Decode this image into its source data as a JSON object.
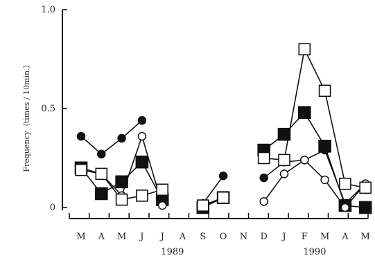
{
  "chart_data": {
    "type": "line",
    "title": "",
    "ylabel": "Frequency（times / 10min.）",
    "xlabel": "",
    "ylim": [
      0,
      1.0
    ],
    "yticks": [
      0,
      0.5,
      1.0
    ],
    "ytick_labels": [
      "0",
      "0.5",
      "1.0"
    ],
    "categories": [
      "M",
      "A",
      "M",
      "J",
      "J",
      "A",
      "S",
      "O",
      "N",
      "D",
      "J",
      "F",
      "M",
      "A",
      "M"
    ],
    "year_labels": [
      {
        "text": "1989",
        "category_index": 4.5
      },
      {
        "text": "1990",
        "category_index": 11.5
      }
    ],
    "series": [
      {
        "marker": "filled-circle",
        "values": [
          0.36,
          0.27,
          0.35,
          0.44,
          null,
          null,
          0.02,
          0.16,
          null,
          0.15,
          0.23,
          0.24,
          0.29,
          0.02,
          0.12
        ]
      },
      {
        "marker": "filled-square",
        "values": [
          0.2,
          0.07,
          0.13,
          0.23,
          0.04,
          null,
          0.0,
          0.05,
          null,
          0.29,
          0.37,
          0.48,
          0.31,
          0.01,
          0.0
        ]
      },
      {
        "marker": "open-circle",
        "values": [
          0.2,
          0.17,
          0.06,
          0.36,
          0.01,
          null,
          0.01,
          0.05,
          null,
          0.03,
          0.17,
          0.24,
          0.14,
          0.0,
          0.12
        ]
      },
      {
        "marker": "open-square",
        "values": [
          0.19,
          0.17,
          0.04,
          0.06,
          0.09,
          null,
          0.01,
          0.05,
          null,
          0.25,
          0.24,
          0.8,
          0.59,
          0.12,
          0.1
        ]
      }
    ]
  }
}
